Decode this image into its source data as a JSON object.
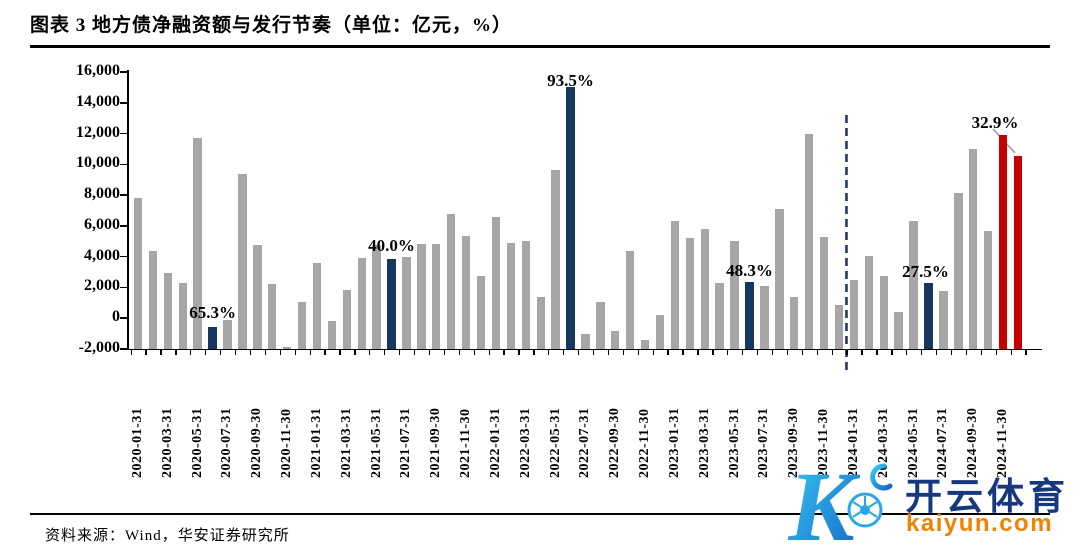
{
  "title": "图表 3 地方债净融资额与发行节奏（单位：亿元，%）",
  "source": {
    "text": "资料来源：Wind，华安证券研究所"
  },
  "watermark": {
    "logo_letter": "K",
    "brand": "开云体育",
    "domain": "kaiyun.com"
  },
  "colors": {
    "bar_gray": "#A6A6A6",
    "bar_navy": "#17375E",
    "bar_red": "#C80000",
    "dashed_line": "#1F3864",
    "leader_line": "#9a9a9a",
    "axis": "#000000",
    "watermark_blue": "#17387F",
    "watermark_orange": "#F08300",
    "watermark_gradient_start": "#38C9F2",
    "watermark_gradient_end": "#1566C8"
  },
  "chart_data": {
    "type": "bar",
    "title": "地方债净融资额与发行节奏",
    "unit": "亿元，%",
    "ylim": [
      -2000,
      16000
    ],
    "ytick_step": 2000,
    "bar_base": -2000,
    "grid": false,
    "months": [
      "2020-01",
      "2020-02",
      "2020-03",
      "2020-04",
      "2020-05",
      "2020-06",
      "2020-07",
      "2020-08",
      "2020-09",
      "2020-10",
      "2020-11",
      "2020-12",
      "2021-01",
      "2021-02",
      "2021-03",
      "2021-04",
      "2021-05",
      "2021-06",
      "2021-07",
      "2021-08",
      "2021-09",
      "2021-10",
      "2021-11",
      "2021-12",
      "2022-01",
      "2022-02",
      "2022-03",
      "2022-04",
      "2022-05",
      "2022-06",
      "2022-07",
      "2022-08",
      "2022-09",
      "2022-10",
      "2022-11",
      "2022-12",
      "2023-01",
      "2023-02",
      "2023-03",
      "2023-04",
      "2023-05",
      "2023-06",
      "2023-07",
      "2023-08",
      "2023-09",
      "2023-10",
      "2023-11",
      "2023-12",
      "2024-01",
      "2024-02",
      "2024-03",
      "2024-04",
      "2024-05",
      "2024-06",
      "2024-07",
      "2024-08",
      "2024-09",
      "2024-10",
      "2024-11",
      "2024-12"
    ],
    "values": [
      7800,
      4400,
      2950,
      2300,
      11700,
      -550,
      -100,
      9400,
      4750,
      2250,
      -1900,
      1050,
      3600,
      -150,
      1850,
      3900,
      4750,
      3850,
      4000,
      4800,
      4800,
      6800,
      5350,
      2750,
      6600,
      4900,
      5000,
      1400,
      9600,
      15000,
      -1000,
      1050,
      -850,
      4400,
      -1400,
      200,
      6300,
      5200,
      5800,
      2300,
      5000,
      2350,
      2100,
      7100,
      1400,
      12000,
      5300,
      850,
      2500,
      4050,
      2750,
      400,
      6300,
      2300,
      1800,
      8150,
      11000,
      5700,
      11900,
      10550
    ],
    "highlight_navy_indices": [
      5,
      17,
      29,
      41,
      53
    ],
    "highlight_red_indices": [
      58,
      59
    ],
    "annotations": [
      {
        "index": 5,
        "label": "65.3%"
      },
      {
        "index": 17,
        "label": "40.0%"
      },
      {
        "index": 29,
        "label": "93.5%"
      },
      {
        "index": 41,
        "label": "48.3%"
      },
      {
        "index": 53,
        "label": "27.5%"
      },
      {
        "index": 59,
        "label": "32.9%"
      }
    ],
    "x_tick_labels": [
      "2020-01-31",
      "2020-03-31",
      "2020-05-31",
      "2020-07-31",
      "2020-09-30",
      "2020-11-30",
      "2021-01-31",
      "2021-03-31",
      "2021-05-31",
      "2021-07-31",
      "2021-09-30",
      "2021-11-30",
      "2022-01-31",
      "2022-03-31",
      "2022-05-31",
      "2022-07-31",
      "2022-09-30",
      "2022-11-30",
      "2023-01-31",
      "2023-03-31",
      "2023-05-31",
      "2023-07-31",
      "2023-09-30",
      "2023-11-30",
      "2024-01-31",
      "2024-03-31",
      "2024-05-31",
      "2024-07-31",
      "2024-09-30",
      "2024-11-30"
    ],
    "dashed_line_between": [
      "2023-12",
      "2024-01"
    ],
    "legend": null
  }
}
